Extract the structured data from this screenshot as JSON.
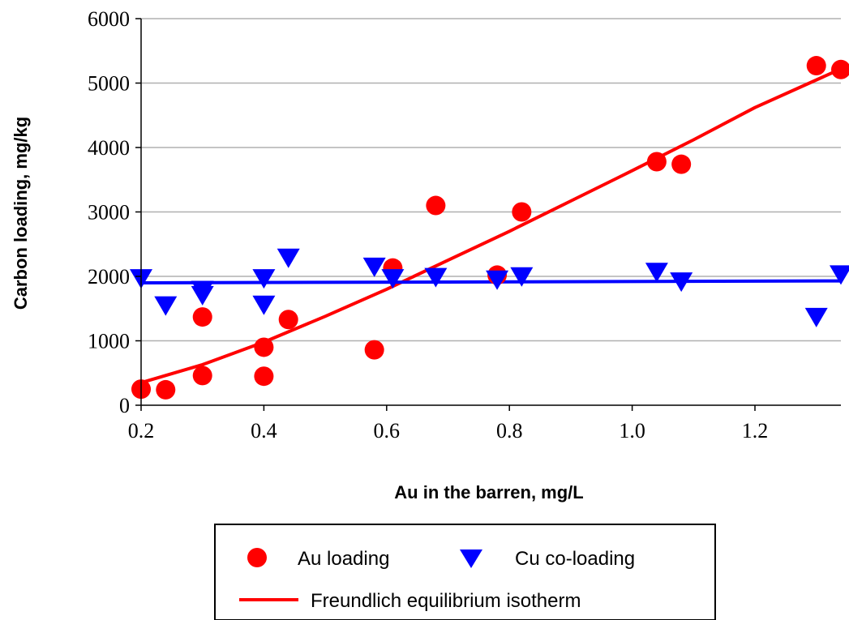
{
  "chart_data": {
    "type": "scatter",
    "xlabel": "Au in the barren, mg/L",
    "ylabel": "Carbon loading, mg/kg",
    "xlim": [
      0.2,
      1.34
    ],
    "ylim": [
      0,
      6000
    ],
    "x_ticks": [
      0.2,
      0.4,
      0.6,
      0.8,
      1.0,
      1.2
    ],
    "x_tick_labels": [
      "0.2",
      "0.4",
      "0.6",
      "0.8",
      "1.0",
      "1.2"
    ],
    "y_ticks": [
      0,
      1000,
      2000,
      3000,
      4000,
      5000,
      6000
    ],
    "y_tick_labels": [
      "0",
      "1000",
      "2000",
      "3000",
      "4000",
      "5000",
      "6000"
    ],
    "grid": "horizontal",
    "legend_position": "bottom",
    "series": [
      {
        "name": "Au loading",
        "kind": "scatter",
        "marker": "circle",
        "color": "#ff0000",
        "points": [
          [
            0.2,
            250
          ],
          [
            0.24,
            240
          ],
          [
            0.3,
            460
          ],
          [
            0.3,
            1370
          ],
          [
            0.4,
            450
          ],
          [
            0.4,
            900
          ],
          [
            0.44,
            1330
          ],
          [
            0.58,
            860
          ],
          [
            0.61,
            2130
          ],
          [
            0.68,
            3100
          ],
          [
            0.78,
            2020
          ],
          [
            0.82,
            3000
          ],
          [
            1.04,
            3780
          ],
          [
            1.08,
            3740
          ],
          [
            1.3,
            5270
          ],
          [
            1.34,
            5210
          ]
        ]
      },
      {
        "name": "Cu co-loading",
        "kind": "scatter",
        "marker": "triangle-down",
        "color": "#0000ff",
        "points": [
          [
            0.2,
            1960
          ],
          [
            0.24,
            1540
          ],
          [
            0.3,
            1700
          ],
          [
            0.3,
            1780
          ],
          [
            0.4,
            1960
          ],
          [
            0.4,
            1550
          ],
          [
            0.44,
            2280
          ],
          [
            0.58,
            2140
          ],
          [
            0.61,
            1960
          ],
          [
            0.68,
            1980
          ],
          [
            0.78,
            1940
          ],
          [
            0.82,
            1990
          ],
          [
            1.04,
            2060
          ],
          [
            1.08,
            1910
          ],
          [
            1.3,
            1360
          ],
          [
            1.34,
            2020
          ]
        ]
      },
      {
        "name": "Freundlich equilibrium isotherm",
        "kind": "line",
        "color": "#ff0000",
        "points": [
          [
            0.2,
            350
          ],
          [
            0.3,
            630
          ],
          [
            0.4,
            980
          ],
          [
            0.5,
            1380
          ],
          [
            0.6,
            1800
          ],
          [
            0.7,
            2250
          ],
          [
            0.8,
            2700
          ],
          [
            0.9,
            3170
          ],
          [
            1.0,
            3640
          ],
          [
            1.1,
            4120
          ],
          [
            1.2,
            4620
          ],
          [
            1.34,
            5220
          ]
        ]
      },
      {
        "kind": "line",
        "color": "#0000ff",
        "points": [
          [
            0.2,
            1900
          ],
          [
            1.34,
            1930
          ]
        ]
      }
    ]
  }
}
